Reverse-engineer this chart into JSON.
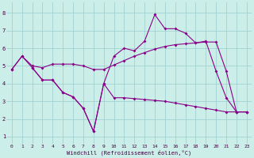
{
  "xlabel": "Windchill (Refroidissement éolien,°C)",
  "background_color": "#cceee8",
  "line_color": "#880088",
  "xlim_min": -0.5,
  "xlim_max": 23.5,
  "ylim_min": 0.6,
  "ylim_max": 8.6,
  "yticks": [
    1,
    2,
    3,
    4,
    5,
    6,
    7,
    8
  ],
  "xticks": [
    0,
    1,
    2,
    3,
    4,
    5,
    6,
    7,
    8,
    9,
    10,
    11,
    12,
    13,
    14,
    15,
    16,
    17,
    18,
    19,
    20,
    21,
    22,
    23
  ],
  "series1_x": [
    0,
    1,
    2,
    3,
    4,
    5,
    6,
    7,
    8,
    9,
    10,
    11,
    12,
    13,
    14,
    15,
    16,
    17,
    18,
    19,
    20,
    21,
    22,
    23
  ],
  "series1_y": [
    4.8,
    5.55,
    4.9,
    4.2,
    4.2,
    3.5,
    3.25,
    2.6,
    1.3,
    4.0,
    5.55,
    6.0,
    5.85,
    6.4,
    7.9,
    7.1,
    7.1,
    6.85,
    6.3,
    6.4,
    4.7,
    3.2,
    2.4,
    2.4
  ],
  "series2_x": [
    0,
    1,
    2,
    3,
    4,
    5,
    6,
    7,
    8,
    9,
    10,
    11,
    12,
    13,
    14,
    15,
    16,
    17,
    18,
    19,
    20,
    21,
    22,
    23
  ],
  "series2_y": [
    4.8,
    5.55,
    5.0,
    4.9,
    5.1,
    5.1,
    5.1,
    5.0,
    4.8,
    4.8,
    5.05,
    5.3,
    5.55,
    5.75,
    5.95,
    6.1,
    6.2,
    6.25,
    6.3,
    6.35,
    6.35,
    4.7,
    2.4,
    2.4
  ],
  "series3_x": [
    2,
    3,
    4,
    5,
    6,
    7,
    8,
    9,
    10,
    11,
    12,
    13,
    14,
    15,
    16,
    17,
    18,
    19,
    20,
    21,
    22,
    23
  ],
  "series3_y": [
    4.9,
    4.2,
    4.2,
    3.5,
    3.25,
    2.6,
    1.3,
    4.0,
    3.2,
    3.2,
    3.15,
    3.1,
    3.05,
    3.0,
    2.9,
    2.8,
    2.7,
    2.6,
    2.5,
    2.4,
    2.4,
    2.4
  ]
}
